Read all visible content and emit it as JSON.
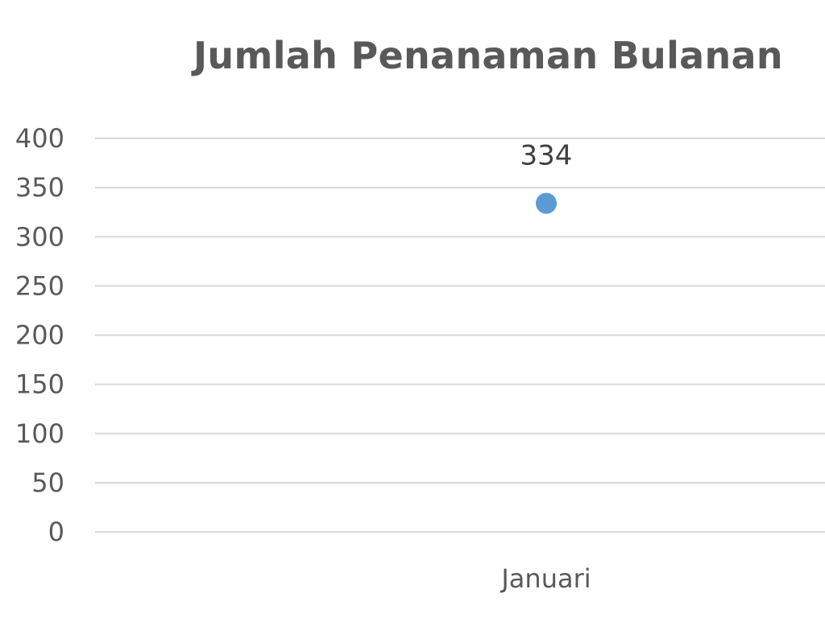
{
  "chart_data": {
    "type": "scatter",
    "title": "Jumlah Penanaman Bulanan",
    "xlabel": "",
    "ylabel": "",
    "categories": [
      "Januari"
    ],
    "series": [
      {
        "values": [
          334
        ],
        "data_labels": [
          "334"
        ]
      }
    ],
    "ylim": [
      0,
      400
    ],
    "yticks": [
      "0",
      "50",
      "100",
      "150",
      "200",
      "250",
      "300",
      "350",
      "400"
    ],
    "grid": true,
    "legend": "none",
    "colors": {
      "marker": "#5B9BD5",
      "grid": "#D9D9D9",
      "text": "#595959"
    }
  }
}
